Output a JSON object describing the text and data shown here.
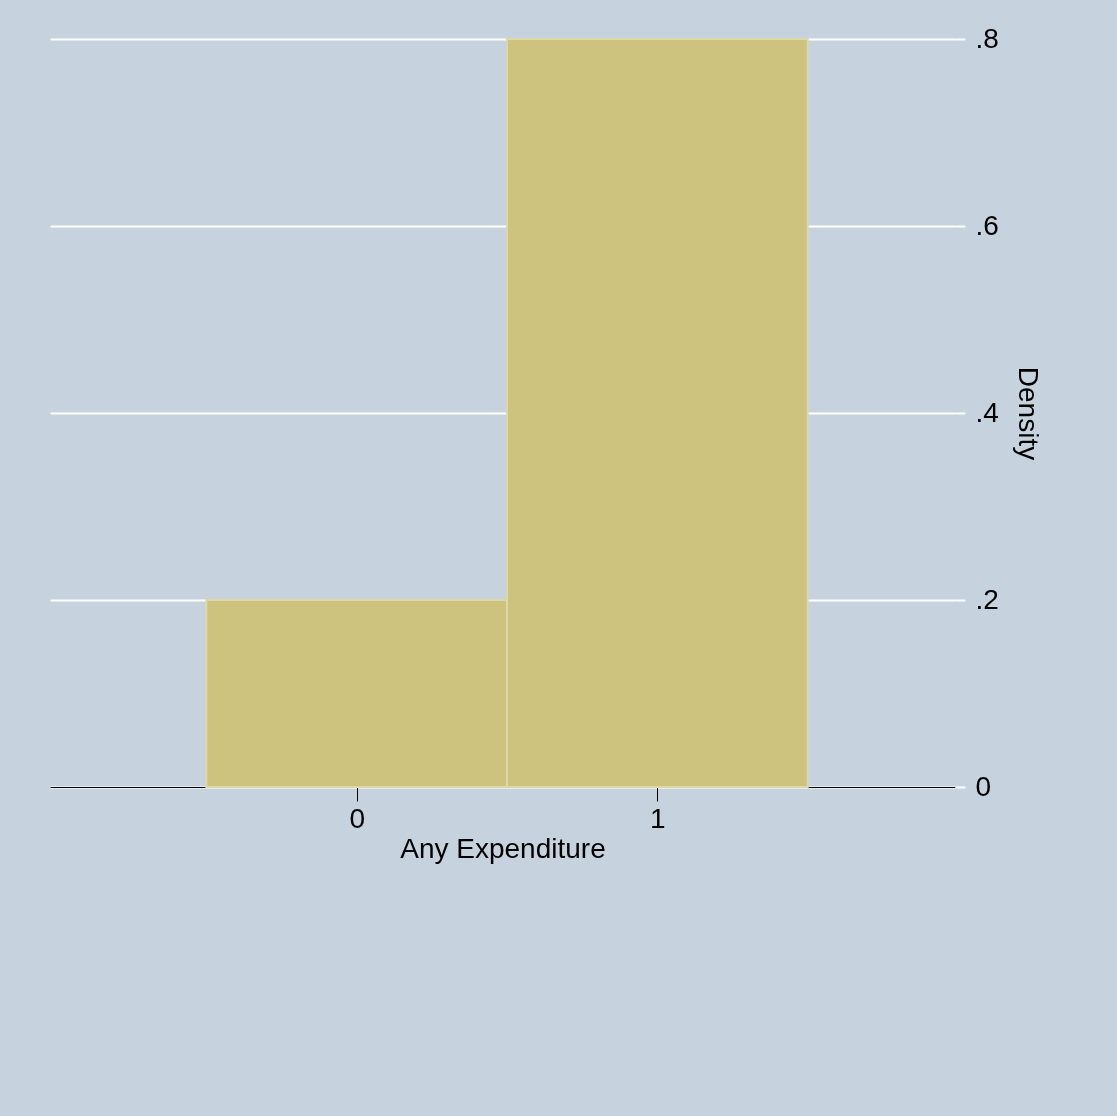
{
  "chart_data": {
    "type": "histogram",
    "xlabel": "Any Expenditure",
    "ylabel": "Density",
    "bins": [
      -0.5,
      0.5,
      1.5
    ],
    "values": [
      0.2,
      0.8
    ],
    "color": "#cdc37f",
    "xlim": [
      -1.02,
      1.99
    ],
    "xticks": [
      0,
      1
    ],
    "ylim": [
      0,
      0.8
    ],
    "yticks": [
      {
        "value": 0,
        "label": "0"
      },
      {
        "value": 0.2,
        "label": ".2"
      },
      {
        "value": 0.4,
        "label": ".4"
      },
      {
        "value": 0.6,
        "label": ".6"
      },
      {
        "value": 0.8,
        "label": ".8"
      }
    ],
    "grid": "y"
  }
}
